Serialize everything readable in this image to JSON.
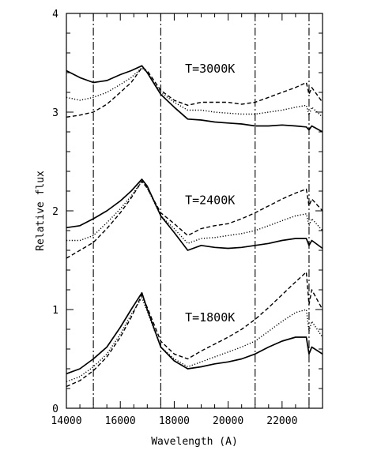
{
  "chart_data": {
    "type": "line",
    "title": "",
    "xlabel": "Wavelength (A)",
    "ylabel": "Relative flux",
    "xlim": [
      14000,
      23500
    ],
    "ylim": [
      0,
      4
    ],
    "x_ticks": [
      14000,
      16000,
      18000,
      20000,
      22000
    ],
    "x_tick_labels": [
      "14000",
      "16000",
      "18000",
      "20000",
      "22000"
    ],
    "y_ticks": [
      0,
      1,
      2,
      3,
      4
    ],
    "y_tick_labels": [
      "0",
      "1",
      "2",
      "3",
      "4"
    ],
    "grid": false,
    "legend": "none",
    "vertical_lines": [
      15000,
      17500,
      21000,
      23000
    ],
    "annotations": [
      {
        "text": "T=3000K",
        "x": 18400,
        "y": 3.4
      },
      {
        "text": "T=2400K",
        "x": 18400,
        "y": 2.07
      },
      {
        "text": "T=1800K",
        "x": 18400,
        "y": 0.88
      }
    ],
    "panels": [
      {
        "label": "T=3000K",
        "series": [
          {
            "style": "solid",
            "x": [
              14000,
              14500,
              15000,
              15500,
              16000,
              16400,
              16800,
              17000,
              17500,
              18000,
              18500,
              19000,
              19500,
              20000,
              20500,
              21000,
              21500,
              22000,
              22500,
              22900,
              23000,
              23100,
              23500
            ],
            "y": [
              3.42,
              3.35,
              3.3,
              3.32,
              3.38,
              3.42,
              3.47,
              3.4,
              3.18,
              3.05,
              2.93,
              2.92,
              2.9,
              2.89,
              2.88,
              2.86,
              2.86,
              2.87,
              2.86,
              2.85,
              2.82,
              2.86,
              2.8
            ]
          },
          {
            "style": "dotted",
            "x": [
              14000,
              14500,
              15000,
              15500,
              16000,
              16400,
              16800,
              17000,
              17500,
              18000,
              18500,
              19000,
              19500,
              20000,
              20500,
              21000,
              21500,
              22000,
              22500,
              22900,
              23000,
              23100,
              23500
            ],
            "y": [
              3.15,
              3.12,
              3.15,
              3.2,
              3.28,
              3.35,
              3.45,
              3.4,
              3.2,
              3.1,
              3.02,
              3.02,
              3.0,
              2.99,
              2.98,
              2.98,
              3.0,
              3.02,
              3.05,
              3.07,
              2.97,
              3.05,
              2.95
            ]
          },
          {
            "style": "dashed",
            "x": [
              14000,
              14500,
              15000,
              15500,
              16000,
              16400,
              16800,
              17000,
              17500,
              18000,
              18500,
              19000,
              19500,
              20000,
              20500,
              21000,
              21500,
              22000,
              22500,
              22900,
              23000,
              23100,
              23500
            ],
            "y": [
              2.95,
              2.97,
              3.0,
              3.08,
              3.2,
              3.3,
              3.45,
              3.42,
              3.22,
              3.12,
              3.07,
              3.1,
              3.1,
              3.1,
              3.08,
              3.1,
              3.15,
              3.2,
              3.25,
              3.3,
              3.18,
              3.25,
              3.1
            ]
          }
        ]
      },
      {
        "label": "T=2400K",
        "series": [
          {
            "style": "solid",
            "x": [
              14000,
              14500,
              15000,
              15500,
              16000,
              16400,
              16800,
              17000,
              17500,
              18000,
              18500,
              19000,
              19500,
              20000,
              20500,
              21000,
              21500,
              22000,
              22500,
              22900,
              23000,
              23100,
              23500
            ],
            "y": [
              1.83,
              1.85,
              1.92,
              2.0,
              2.1,
              2.2,
              2.32,
              2.25,
              1.95,
              1.78,
              1.6,
              1.65,
              1.63,
              1.62,
              1.63,
              1.65,
              1.67,
              1.7,
              1.72,
              1.72,
              1.65,
              1.7,
              1.62
            ]
          },
          {
            "style": "dotted",
            "x": [
              14000,
              14500,
              15000,
              15500,
              16000,
              16400,
              16800,
              17000,
              17500,
              18000,
              18500,
              19000,
              19500,
              20000,
              20500,
              21000,
              21500,
              22000,
              22500,
              22900,
              23000,
              23100,
              23500
            ],
            "y": [
              1.7,
              1.7,
              1.75,
              1.88,
              2.02,
              2.15,
              2.3,
              2.23,
              1.95,
              1.82,
              1.67,
              1.72,
              1.73,
              1.75,
              1.77,
              1.8,
              1.85,
              1.9,
              1.95,
              1.97,
              1.85,
              1.92,
              1.8
            ]
          },
          {
            "style": "dashed",
            "x": [
              14000,
              14500,
              15000,
              15500,
              16000,
              16400,
              16800,
              17000,
              17500,
              18000,
              18500,
              19000,
              19500,
              20000,
              20500,
              21000,
              21500,
              22000,
              22500,
              22900,
              23000,
              23100,
              23500
            ],
            "y": [
              1.52,
              1.6,
              1.68,
              1.82,
              1.98,
              2.13,
              2.3,
              2.23,
              1.98,
              1.87,
              1.75,
              1.82,
              1.85,
              1.87,
              1.92,
              1.98,
              2.05,
              2.12,
              2.18,
              2.22,
              2.05,
              2.12,
              2.0
            ]
          }
        ]
      },
      {
        "label": "T=1800K",
        "series": [
          {
            "style": "solid",
            "x": [
              14000,
              14500,
              15000,
              15500,
              16000,
              16400,
              16800,
              17000,
              17500,
              18000,
              18500,
              19000,
              19500,
              20000,
              20500,
              21000,
              21500,
              22000,
              22500,
              22900,
              23000,
              23100,
              23500
            ],
            "y": [
              0.35,
              0.4,
              0.5,
              0.62,
              0.82,
              1.0,
              1.17,
              1.0,
              0.62,
              0.48,
              0.4,
              0.42,
              0.45,
              0.47,
              0.5,
              0.55,
              0.62,
              0.68,
              0.72,
              0.72,
              0.55,
              0.62,
              0.55
            ]
          },
          {
            "style": "dotted",
            "x": [
              14000,
              14500,
              15000,
              15500,
              16000,
              16400,
              16800,
              17000,
              17500,
              18000,
              18500,
              19000,
              19500,
              20000,
              20500,
              21000,
              21500,
              22000,
              22500,
              22900,
              23000,
              23100,
              23500
            ],
            "y": [
              0.27,
              0.32,
              0.42,
              0.55,
              0.75,
              0.95,
              1.12,
              0.98,
              0.62,
              0.5,
              0.42,
              0.47,
              0.52,
              0.57,
              0.62,
              0.68,
              0.78,
              0.88,
              0.97,
              1.0,
              0.78,
              0.88,
              0.72
            ]
          },
          {
            "style": "dashed",
            "x": [
              14000,
              14500,
              15000,
              15500,
              16000,
              16400,
              16800,
              17000,
              17500,
              18000,
              18500,
              19000,
              19500,
              20000,
              20500,
              21000,
              21500,
              22000,
              22500,
              22900,
              23000,
              23100,
              23500
            ],
            "y": [
              0.22,
              0.28,
              0.38,
              0.52,
              0.72,
              0.92,
              1.15,
              1.02,
              0.68,
              0.55,
              0.5,
              0.58,
              0.65,
              0.72,
              0.8,
              0.9,
              1.02,
              1.15,
              1.28,
              1.38,
              1.05,
              1.2,
              1.0
            ]
          }
        ]
      }
    ]
  }
}
